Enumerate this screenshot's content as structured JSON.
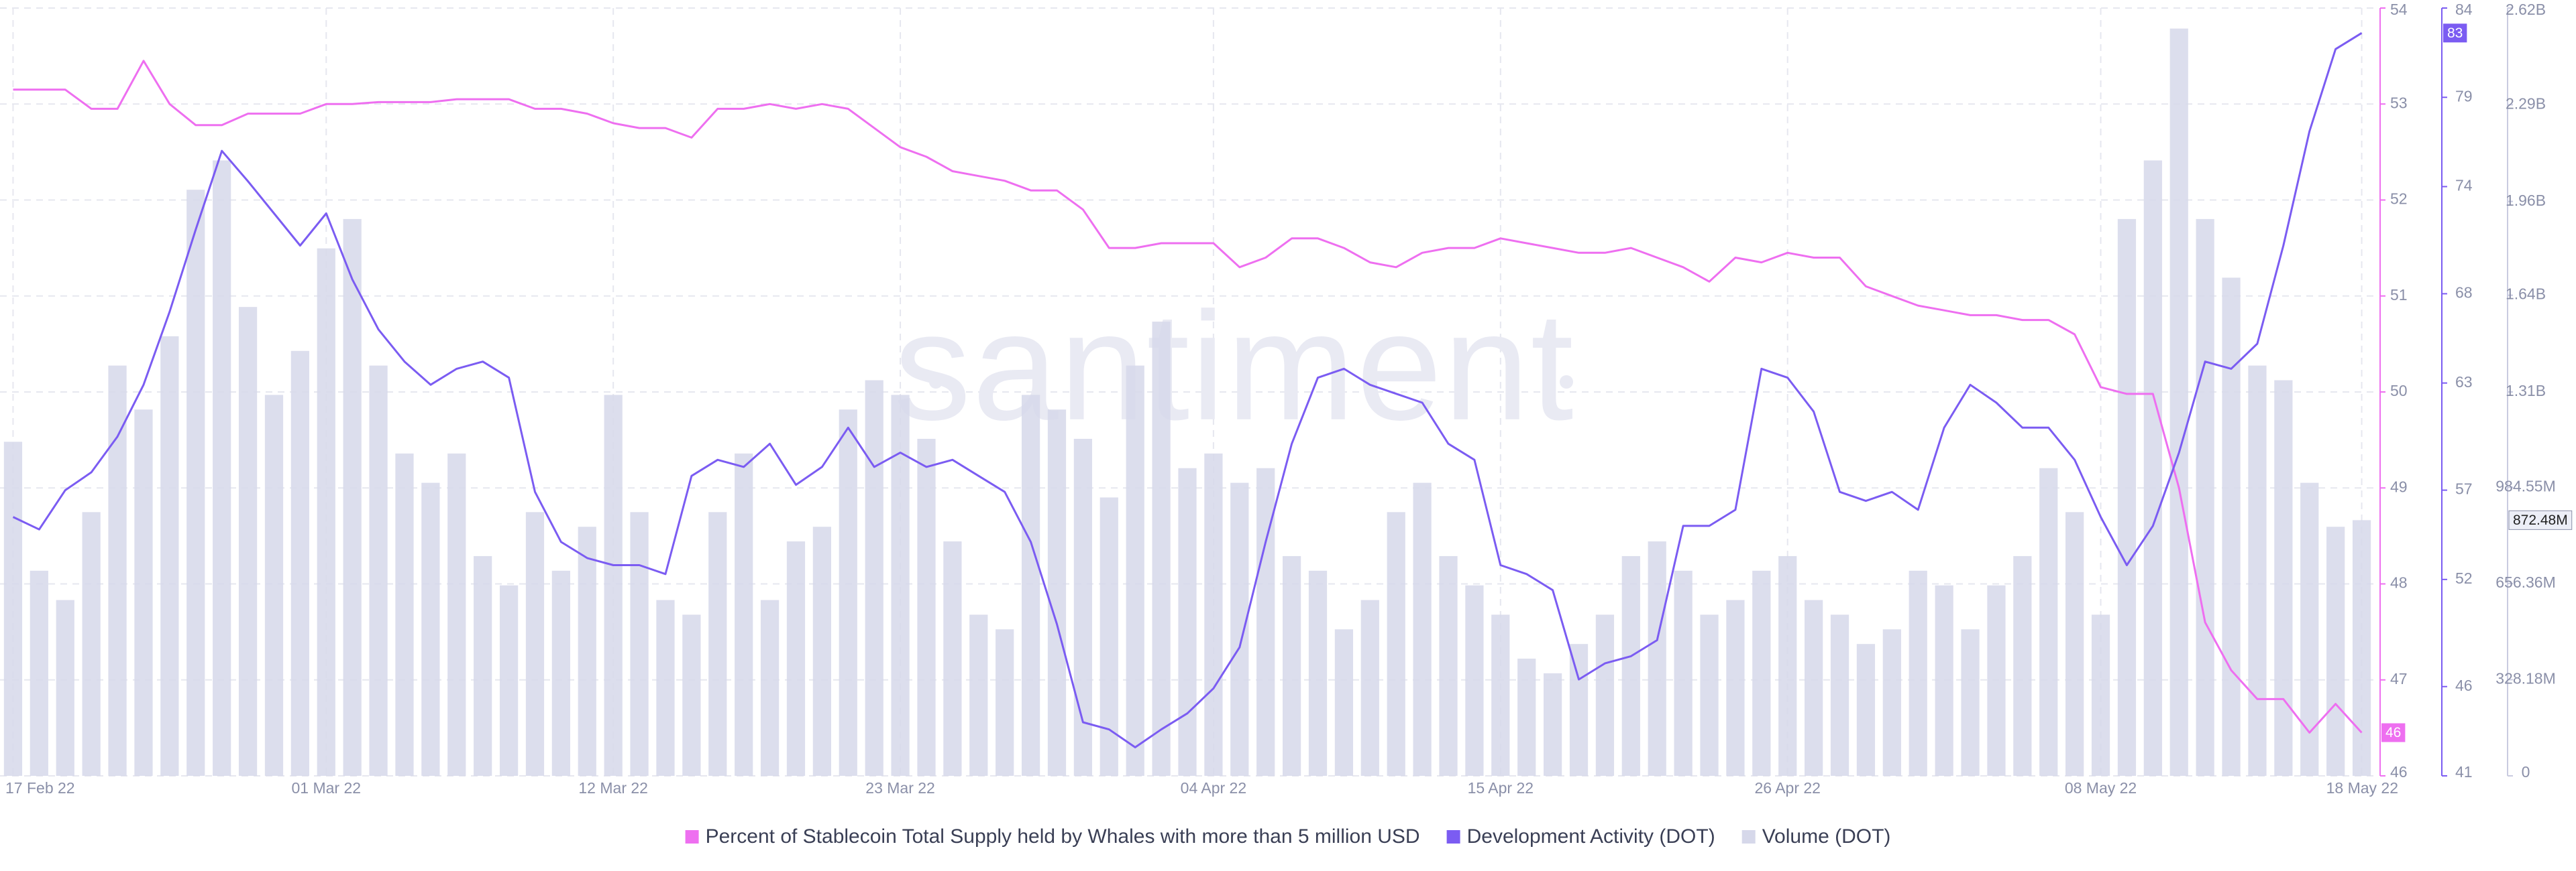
{
  "chart_data": {
    "type": "combo",
    "watermark": "santiment",
    "categories": [
      "17 Feb 22",
      null,
      null,
      null,
      null,
      null,
      null,
      null,
      null,
      null,
      null,
      null,
      "01 Mar 22",
      null,
      null,
      null,
      null,
      null,
      null,
      null,
      null,
      null,
      null,
      "12 Mar 22",
      null,
      null,
      null,
      null,
      null,
      null,
      null,
      null,
      null,
      null,
      "23 Mar 22",
      null,
      null,
      null,
      null,
      null,
      null,
      null,
      null,
      null,
      null,
      null,
      "04 Apr 22",
      null,
      null,
      null,
      null,
      null,
      null,
      null,
      null,
      null,
      null,
      "15 Apr 22",
      null,
      null,
      null,
      null,
      null,
      null,
      null,
      null,
      null,
      null,
      "26 Apr 22",
      null,
      null,
      null,
      null,
      null,
      null,
      null,
      null,
      null,
      null,
      null,
      "08 May 22",
      null,
      null,
      null,
      null,
      null,
      null,
      null,
      null,
      null,
      "18 May 22"
    ],
    "ylim": [
      46,
      54
    ],
    "yticks": [
      46,
      47,
      48,
      49,
      50,
      51,
      52,
      53,
      54
    ],
    "y2lim": [
      41,
      84
    ],
    "y2ticks": [
      41,
      46,
      52,
      57,
      63,
      68,
      74,
      79,
      84
    ],
    "y3lim": [
      0,
      2620000000
    ],
    "y3ticks": [
      0,
      {
        "value": 328180000,
        "label": "328.18M"
      },
      {
        "value": 656360000,
        "label": "656.36M"
      },
      {
        "value": 984550000,
        "label": "984.55M"
      },
      {
        "value": 1310000000,
        "label": "1.31B"
      },
      {
        "value": 1640000000,
        "label": "1.64B"
      },
      {
        "value": 1960000000,
        "label": "1.96B"
      },
      {
        "value": 2290000000,
        "label": "2.29B"
      },
      {
        "value": 2620000000,
        "label": "2.62B"
      }
    ],
    "grid": true,
    "legend": "bottom",
    "series": [
      {
        "name": "Percent of Stablecoin Total Supply held by Whales with more than 5 million USD",
        "color": "#ee6ff0",
        "type": "line",
        "axis": "y",
        "last_label": "46",
        "values": [
          53.15,
          53.15,
          53.15,
          52.95,
          52.95,
          53.45,
          53.0,
          52.78,
          52.78,
          52.9,
          52.9,
          52.9,
          53.0,
          53.0,
          53.02,
          53.02,
          53.02,
          53.05,
          53.05,
          53.05,
          52.95,
          52.95,
          52.9,
          52.8,
          52.75,
          52.75,
          52.65,
          52.95,
          52.95,
          53.0,
          52.95,
          53.0,
          52.95,
          52.75,
          52.55,
          52.45,
          52.3,
          52.25,
          52.2,
          52.1,
          52.1,
          51.9,
          51.5,
          51.5,
          51.55,
          51.55,
          51.55,
          51.3,
          51.4,
          51.6,
          51.6,
          51.5,
          51.35,
          51.3,
          51.45,
          51.5,
          51.5,
          51.6,
          51.55,
          51.5,
          51.45,
          51.45,
          51.5,
          51.4,
          51.3,
          51.15,
          51.4,
          51.35,
          51.45,
          51.4,
          51.4,
          51.1,
          51.0,
          50.9,
          50.85,
          50.8,
          50.8,
          50.75,
          50.75,
          50.6,
          50.05,
          49.98,
          49.98,
          49.0,
          47.6,
          47.1,
          46.8,
          46.8,
          46.45,
          46.75,
          46.45
        ]
      },
      {
        "name": "Development Activity (DOT)",
        "color": "#7b5cf2",
        "type": "line",
        "axis": "y2",
        "last_label": "83",
        "values": [
          55.5,
          54.8,
          57,
          58,
          60,
          62.9,
          67,
          71.6,
          76,
          74.3,
          72.5,
          70.7,
          72.5,
          68.8,
          66,
          64.2,
          62.9,
          63.8,
          64.2,
          63.3,
          56.9,
          54.1,
          53.2,
          52.8,
          52.8,
          52.3,
          57.8,
          58.7,
          58.3,
          59.6,
          57.3,
          58.3,
          60.5,
          58.3,
          59.1,
          58.3,
          58.7,
          57.8,
          56.9,
          54.1,
          49.5,
          44,
          43.6,
          42.6,
          43.6,
          44.5,
          45.9,
          48.2,
          54.1,
          59.6,
          63.3,
          63.8,
          62.9,
          62.4,
          61.9,
          59.6,
          58.7,
          52.8,
          52.3,
          51.4,
          46.4,
          47.3,
          47.7,
          48.6,
          55,
          55,
          55.9,
          63.8,
          63.3,
          61.4,
          56.9,
          56.4,
          56.9,
          55.9,
          60.5,
          62.9,
          61.9,
          60.5,
          60.5,
          58.7,
          55.5,
          52.8,
          55,
          59.1,
          64.2,
          63.8,
          65.2,
          70.7,
          77.1,
          81.7,
          82.6
        ]
      },
      {
        "name": "Volume (DOT)",
        "color": "#d6d8ea",
        "type": "bar",
        "axis": "y3",
        "last_label": "872.48M",
        "values": [
          1140000000,
          700000000,
          600000000,
          900000000,
          1400000000,
          1250000000,
          1500000000,
          2000000000,
          2100000000,
          1600000000,
          1300000000,
          1450000000,
          1800000000,
          1900000000,
          1400000000,
          1100000000,
          1000000000,
          1100000000,
          750000000,
          650000000,
          900000000,
          700000000,
          850000000,
          1300000000,
          900000000,
          600000000,
          550000000,
          900000000,
          1100000000,
          600000000,
          800000000,
          850000000,
          1250000000,
          1350000000,
          1300000000,
          1150000000,
          800000000,
          550000000,
          500000000,
          1300000000,
          1250000000,
          1150000000,
          950000000,
          1400000000,
          1550000000,
          1050000000,
          1100000000,
          1000000000,
          1050000000,
          750000000,
          700000000,
          500000000,
          600000000,
          900000000,
          1000000000,
          750000000,
          650000000,
          550000000,
          400000000,
          350000000,
          450000000,
          550000000,
          750000000,
          800000000,
          700000000,
          550000000,
          600000000,
          700000000,
          750000000,
          600000000,
          550000000,
          450000000,
          500000000,
          700000000,
          650000000,
          500000000,
          650000000,
          750000000,
          1050000000,
          900000000,
          550000000,
          1900000000,
          2100000000,
          2550000000,
          1900000000,
          1700000000,
          1400000000,
          1350000000,
          1000000000,
          850000000,
          872480000
        ]
      }
    ]
  }
}
